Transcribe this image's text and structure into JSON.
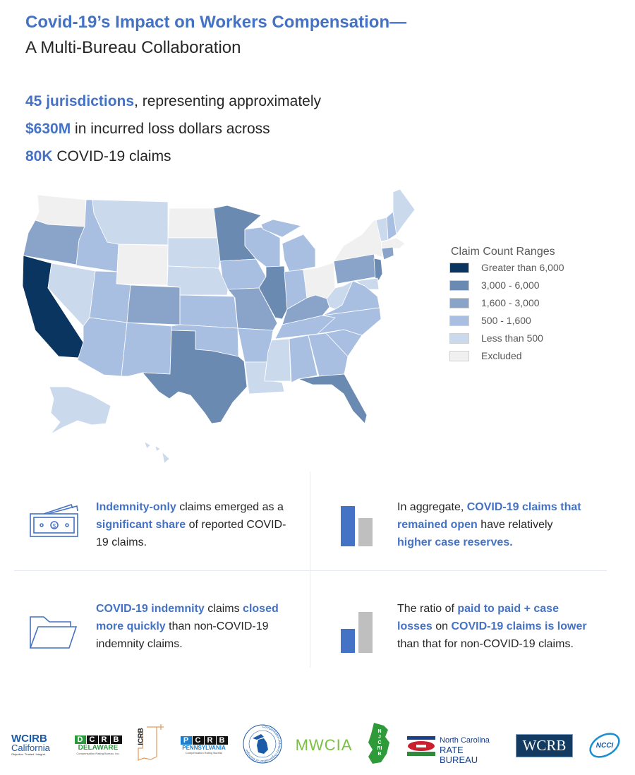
{
  "header": {
    "title": "Covid-19’s Impact on Workers Compensation—",
    "subtitle": "A Multi-Bureau Collaboration"
  },
  "stats": [
    {
      "highlight": "45 jurisdictions",
      "text": ", representing approximately"
    },
    {
      "highlight": "$630M",
      "text": " in incurred loss dollars across"
    },
    {
      "highlight": "80K",
      "text": " COVID-19 claims"
    }
  ],
  "legend": {
    "title": "Claim Count Ranges",
    "items": [
      {
        "label": "Greater than 6,000",
        "color": "#0b3561"
      },
      {
        "label": "3,000 - 6,000",
        "color": "#6a8ab2"
      },
      {
        "label": "1,600 - 3,000",
        "color": "#8aa4c9"
      },
      {
        "label": "500 - 1,600",
        "color": "#a9bfe2"
      },
      {
        "label": "Less than 500",
        "color": "#cbd9ed"
      },
      {
        "label": "Excluded",
        "color": "#f0f0f0"
      }
    ]
  },
  "map": {
    "state_levels": {
      "CA": 0,
      "MN": 1,
      "IL": 1,
      "TX": 1,
      "FL": 1,
      "NJ": 1,
      "OR": 2,
      "CO": 2,
      "MO": 2,
      "KY": 2,
      "PA": 2,
      "CT": 2,
      "ID": 3,
      "UT": 3,
      "AZ": 3,
      "NM": 3,
      "KS": 3,
      "OK": 3,
      "IA": 3,
      "WI": 3,
      "MI": 3,
      "MIU": 3,
      "IN": 3,
      "AR": 3,
      "TN": 3,
      "AL": 3,
      "GA": 3,
      "SC": 3,
      "NC": 3,
      "VA": 3,
      "NH": 3,
      "MT": 4,
      "NV": 4,
      "SD": 4,
      "NE": 4,
      "MS": 4,
      "LA": 4,
      "ME": 4,
      "VT": 4,
      "WV": 4,
      "MD": 4,
      "AK": 4,
      "HI": 4,
      "WA": 5,
      "WY": 5,
      "ND": 5,
      "OH": 5,
      "NY": 5,
      "MA": 5
    }
  },
  "findings": [
    {
      "parts": [
        {
          "t": "Indemnity-only",
          "h": true
        },
        {
          "t": " claims emerged as a ",
          "h": false
        },
        {
          "t": "significant share",
          "h": true
        },
        {
          "t": " of reported COVID-19 claims.",
          "h": false
        }
      ]
    },
    {
      "parts": [
        {
          "t": "In aggregate, ",
          "h": false
        },
        {
          "t": "COVID-19 claims that remained open",
          "h": true
        },
        {
          "t": " have relatively ",
          "h": false
        },
        {
          "t": "higher case reserves.",
          "h": true
        }
      ]
    },
    {
      "parts": [
        {
          "t": "COVID-19 indemnity",
          "h": true
        },
        {
          "t": " claims ",
          "h": false
        },
        {
          "t": "closed more quickly",
          "h": true
        },
        {
          "t": " than non-COVID-19 indemnity claims.",
          "h": false
        }
      ]
    },
    {
      "parts": [
        {
          "t": "The ratio of ",
          "h": false
        },
        {
          "t": "paid to paid + case losses",
          "h": true
        },
        {
          "t": " on ",
          "h": false
        },
        {
          "t": "COVID-19 claims is lower",
          "h": true
        },
        {
          "t": " than that for non-COVID-19 claims.",
          "h": false
        }
      ]
    }
  ],
  "colors": {
    "accent": "#4472c4",
    "bar_gray": "#bfbfbf"
  },
  "logos": {
    "wcirb": {
      "name": "WCIRB",
      "sub": "California",
      "tag": "Objective. Trusted. Integral."
    },
    "dcrb": {
      "letters": [
        "D",
        "C",
        "R",
        "B"
      ],
      "name": "DELAWARE",
      "tag": "Compensation Rating Bureau, Inc."
    },
    "icrb": {
      "name": "ICRB"
    },
    "pcrb": {
      "letters": [
        "P",
        "C",
        "R",
        "B"
      ],
      "name": "PENNSYLVANIA",
      "tag": "Compensation Rating Bureau"
    },
    "michigan": {
      "name": "Compensation Advisory Organization of Michigan"
    },
    "mwcia": {
      "name": "MWCIA"
    },
    "njcrib": {
      "name": "NJCRIB"
    },
    "ncrb": {
      "line1": "North Carolina",
      "line2": "RATE BUREAU"
    },
    "wcrb": {
      "name": "WCRB"
    },
    "ncci": {
      "name": "NCCI"
    }
  }
}
